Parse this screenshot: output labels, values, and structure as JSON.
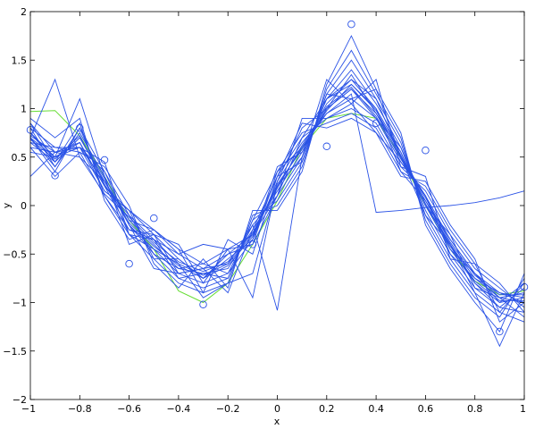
{
  "chart_data": {
    "type": "line",
    "xlabel": "x",
    "ylabel": "y",
    "xlim": [
      -1,
      1
    ],
    "ylim": [
      -2,
      2
    ],
    "grid": false,
    "legend": "none",
    "x_ticks": [
      "−1",
      "−0.8",
      "−0.6",
      "−0.4",
      "−0.2",
      "0",
      "0.2",
      "0.4",
      "0.6",
      "0.8",
      "1"
    ],
    "y_ticks": [
      "−2",
      "−1.5",
      "−1",
      "−0.5",
      "0",
      "0.5",
      "1",
      "1.5",
      "2"
    ],
    "x_tick_values": [
      -1,
      -0.8,
      -0.6,
      -0.4,
      -0.2,
      0,
      0.2,
      0.4,
      0.6,
      0.8,
      1
    ],
    "y_tick_values": [
      -2,
      -1.5,
      -1,
      -0.5,
      0,
      0.5,
      1,
      1.5,
      2
    ],
    "colors": {
      "samples": "#2a52e6",
      "truth": "#66dd33",
      "observations": "#2a52e6",
      "axes": "#000000"
    },
    "x": [
      -1,
      -0.9,
      -0.8,
      -0.7,
      -0.6,
      -0.5,
      -0.4,
      -0.3,
      -0.2,
      -0.1,
      0,
      0.1,
      0.2,
      0.3,
      0.4,
      0.5,
      0.6,
      0.7,
      0.8,
      0.9,
      1
    ],
    "truth_series": {
      "x": [
        -1,
        -0.9,
        -0.8,
        -0.7,
        -0.6,
        -0.5,
        -0.4,
        -0.3,
        -0.2,
        -0.1,
        0,
        0.1,
        0.2,
        0.3,
        0.4,
        0.5,
        0.6,
        0.7,
        0.8,
        0.9,
        1
      ],
      "values": [
        0.97,
        0.98,
        0.72,
        0.3,
        -0.15,
        -0.45,
        -0.88,
        -1.0,
        -0.8,
        -0.4,
        0.05,
        0.6,
        0.9,
        0.95,
        0.9,
        0.5,
        0.0,
        -0.45,
        -0.78,
        -0.92,
        -0.88
      ]
    },
    "observations": {
      "x": [
        -1,
        -0.9,
        -0.8,
        -0.7,
        -0.6,
        -0.5,
        -0.3,
        -0.1,
        0.2,
        0.3,
        0.4,
        0.6,
        0.9,
        1
      ],
      "y": [
        0.78,
        0.31,
        0.8,
        0.47,
        -0.6,
        -0.13,
        -1.02,
        -0.4,
        0.61,
        1.87,
        0.85,
        0.57,
        -1.3,
        -0.84
      ]
    },
    "series": [
      {
        "values": [
          0.7,
          0.5,
          0.65,
          0.2,
          -0.1,
          -0.35,
          -0.6,
          -0.72,
          -0.6,
          -0.3,
          0.2,
          0.6,
          1.0,
          1.2,
          0.95,
          0.5,
          0.05,
          -0.4,
          -0.75,
          -0.95,
          -0.9
        ]
      },
      {
        "values": [
          0.75,
          0.45,
          0.7,
          0.25,
          -0.15,
          -0.4,
          -0.65,
          -0.7,
          -0.65,
          -0.25,
          0.15,
          0.55,
          1.05,
          1.3,
          1.0,
          0.55,
          0.0,
          -0.45,
          -0.8,
          -1.0,
          -0.95
        ]
      },
      {
        "values": [
          0.6,
          0.55,
          0.6,
          0.15,
          -0.05,
          -0.3,
          -0.55,
          -0.75,
          -0.55,
          -0.35,
          0.25,
          0.65,
          0.95,
          1.1,
          0.9,
          0.45,
          0.1,
          -0.35,
          -0.7,
          -0.9,
          -1.0
        ]
      },
      {
        "values": [
          0.8,
          0.4,
          0.75,
          0.3,
          -0.2,
          -0.45,
          -0.7,
          -0.8,
          -0.7,
          -0.2,
          0.1,
          0.5,
          1.1,
          1.4,
          1.05,
          0.6,
          -0.05,
          -0.5,
          -0.85,
          -1.05,
          -0.85
        ]
      },
      {
        "values": [
          0.65,
          0.6,
          0.55,
          0.1,
          -0.25,
          -0.35,
          -0.5,
          -0.65,
          -0.5,
          -0.3,
          0.3,
          0.7,
          0.9,
          1.0,
          0.85,
          0.4,
          0.15,
          -0.3,
          -0.65,
          -0.85,
          -1.05
        ]
      },
      {
        "values": [
          0.7,
          0.35,
          0.8,
          0.35,
          -0.1,
          -0.5,
          -0.75,
          -0.85,
          -0.75,
          -0.15,
          0.05,
          0.45,
          1.15,
          1.5,
          1.1,
          0.65,
          -0.1,
          -0.55,
          -0.9,
          -1.1,
          -0.8
        ]
      },
      {
        "values": [
          0.55,
          0.5,
          0.65,
          0.2,
          -0.05,
          -0.25,
          -0.45,
          -0.6,
          -0.45,
          -0.4,
          0.35,
          0.75,
          0.85,
          0.95,
          0.8,
          0.35,
          0.2,
          -0.25,
          -0.6,
          -0.8,
          -1.1
        ]
      },
      {
        "values": [
          0.85,
          0.45,
          0.7,
          0.28,
          -0.3,
          -0.55,
          -0.8,
          -0.9,
          -0.8,
          -0.1,
          0.0,
          0.4,
          1.2,
          1.6,
          1.15,
          0.7,
          -0.15,
          -0.6,
          -0.95,
          -1.15,
          -0.75
        ]
      },
      {
        "values": [
          0.72,
          0.55,
          0.5,
          0.12,
          -0.12,
          -0.38,
          -0.58,
          -0.68,
          -0.58,
          -0.28,
          0.18,
          0.62,
          1.02,
          1.22,
          0.92,
          0.48,
          0.08,
          -0.38,
          -0.72,
          -0.92,
          -0.92
        ]
      },
      {
        "values": [
          0.68,
          0.48,
          0.72,
          0.22,
          -0.18,
          -0.42,
          -0.62,
          -0.75,
          -0.62,
          -0.32,
          0.22,
          0.58,
          0.98,
          1.25,
          0.98,
          0.52,
          0.02,
          -0.42,
          -0.78,
          -0.98,
          -0.98
        ]
      },
      {
        "values": [
          0.9,
          0.7,
          0.9,
          0.05,
          -0.35,
          -0.25,
          -0.45,
          -0.9,
          -0.35,
          -0.5,
          0.3,
          0.85,
          0.8,
          0.9,
          0.75,
          0.3,
          0.25,
          -0.2,
          -0.55,
          -1.2,
          -1.0
        ]
      },
      {
        "values": [
          0.6,
          0.3,
          0.55,
          0.4,
          0.0,
          -0.6,
          -0.85,
          -0.55,
          -0.85,
          -0.05,
          -0.05,
          0.35,
          1.25,
          1.75,
          1.2,
          0.75,
          -0.2,
          -0.65,
          -1.0,
          -1.3,
          -0.7
        ]
      },
      {
        "values": [
          0.75,
          0.5,
          1.1,
          0.3,
          -0.4,
          -0.3,
          -0.4,
          -0.8,
          -0.45,
          -0.95,
          0.25,
          0.8,
          1.0,
          1.35,
          0.95,
          0.55,
          0.0,
          -0.4,
          -0.9,
          -1.45,
          -0.9
        ]
      },
      {
        "values": [
          0.7,
          1.3,
          0.5,
          0.25,
          -0.2,
          -0.65,
          -0.7,
          -0.65,
          -0.6,
          -0.2,
          -1.08,
          0.5,
          1.1,
          1.3,
          1.1,
          0.5,
          0.1,
          -0.45,
          -0.7,
          -0.95,
          -1.0
        ]
      },
      {
        "values": [
          0.3,
          0.55,
          0.6,
          0.45,
          -0.3,
          -0.35,
          -0.75,
          -0.7,
          -0.75,
          -0.15,
          0.35,
          0.6,
          0.95,
          1.15,
          -0.07,
          -0.05,
          -0.02,
          0.0,
          0.03,
          0.08,
          0.15
        ]
      },
      {
        "values": [
          0.8,
          0.6,
          0.6,
          0.25,
          -0.15,
          -0.25,
          -0.5,
          -0.4,
          -0.45,
          -0.3,
          0.1,
          0.9,
          0.9,
          1.05,
          0.75,
          0.45,
          0.1,
          -0.5,
          -0.75,
          -0.9,
          -0.95
        ]
      },
      {
        "values": [
          0.65,
          0.45,
          0.85,
          0.1,
          -0.3,
          -0.45,
          -0.6,
          -0.95,
          -0.8,
          -0.7,
          0.2,
          0.5,
          1.3,
          1.05,
          1.3,
          0.4,
          0.3,
          -0.55,
          -0.6,
          -1.1,
          -1.2
        ]
      },
      {
        "values": [
          0.75,
          0.5,
          0.6,
          0.35,
          -0.2,
          -0.5,
          -0.65,
          -0.6,
          -0.7,
          -0.35,
          0.4,
          0.55,
          1.0,
          1.2,
          0.9,
          0.6,
          0.0,
          -0.3,
          -0.85,
          -0.95,
          -1.15
        ]
      },
      {
        "values": [
          0.85,
          0.55,
          0.65,
          0.15,
          -0.05,
          -0.55,
          -0.55,
          -0.75,
          -0.5,
          -0.4,
          0.1,
          0.7,
          1.1,
          1.25,
          1.0,
          0.35,
          0.05,
          -0.35,
          -0.7,
          -1.0,
          -0.8
        ]
      },
      {
        "values": [
          0.7,
          0.4,
          0.8,
          0.2,
          -0.25,
          -0.3,
          -0.7,
          -0.65,
          -0.9,
          -0.25,
          0.3,
          0.45,
          1.15,
          1.1,
          1.2,
          0.5,
          -0.1,
          -0.4,
          -0.8,
          -1.05,
          -1.1
        ]
      }
    ]
  }
}
